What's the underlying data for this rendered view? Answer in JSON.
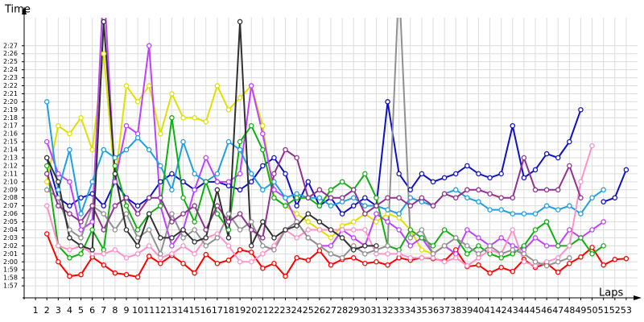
{
  "chart_data": {
    "type": "line",
    "y_label": "Time",
    "x_label": "Laps",
    "grid": true,
    "xlim": [
      0,
      54
    ],
    "ylim": [
      115.5,
      150.5
    ],
    "x": [
      1,
      2,
      3,
      4,
      5,
      6,
      7,
      8,
      9,
      10,
      11,
      12,
      13,
      14,
      15,
      16,
      17,
      18,
      19,
      20,
      21,
      22,
      23,
      24,
      25,
      26,
      27,
      28,
      29,
      30,
      31,
      32,
      33,
      34,
      35,
      36,
      37,
      38,
      39,
      40,
      41,
      42,
      43,
      44,
      45,
      46,
      47,
      48,
      49,
      50,
      51,
      52,
      53
    ],
    "yticks": [
      {
        "value": 117,
        "label": "1:57"
      },
      {
        "value": 118,
        "label": "1:58"
      },
      {
        "value": 119,
        "label": "1:59"
      },
      {
        "value": 120,
        "label": "2:00"
      },
      {
        "value": 121,
        "label": "2:01"
      },
      {
        "value": 122,
        "label": "2:02"
      },
      {
        "value": 123,
        "label": "2:03"
      },
      {
        "value": 124,
        "label": "2:04"
      },
      {
        "value": 125,
        "label": "2:05"
      },
      {
        "value": 126,
        "label": "2:06"
      },
      {
        "value": 127,
        "label": "2:07"
      },
      {
        "value": 128,
        "label": "2:08"
      },
      {
        "value": 129,
        "label": "2:09"
      },
      {
        "value": 130,
        "label": "2:10"
      },
      {
        "value": 131,
        "label": "2:11"
      },
      {
        "value": 132,
        "label": "2:12"
      },
      {
        "value": 133,
        "label": "2:13"
      },
      {
        "value": 134,
        "label": "2:14"
      },
      {
        "value": 135,
        "label": "2:15"
      },
      {
        "value": 136,
        "label": "2:16"
      },
      {
        "value": 137,
        "label": "2:17"
      },
      {
        "value": 138,
        "label": "2:18"
      },
      {
        "value": 139,
        "label": "2:19"
      },
      {
        "value": 140,
        "label": "2:20"
      },
      {
        "value": 141,
        "label": "2:21"
      },
      {
        "value": 142,
        "label": "2:22"
      },
      {
        "value": 143,
        "label": "2:23"
      },
      {
        "value": 144,
        "label": "2:24"
      },
      {
        "value": 145,
        "label": "2:25"
      },
      {
        "value": 146,
        "label": "2:26"
      },
      {
        "value": 147,
        "label": "2:27"
      }
    ],
    "series": [
      {
        "color": "#ff0000",
        "values": [
          null,
          123.5,
          120,
          118.2,
          118.4,
          120.6,
          119.6,
          118.6,
          118.4,
          118.1,
          120.7,
          119.8,
          120.8,
          119.8,
          118.6,
          120.9,
          119.8,
          120.2,
          121.5,
          121.2,
          119.2,
          119.8,
          118.2,
          120.5,
          120.2,
          121.4,
          119.6,
          120.3,
          120.5,
          119.8,
          120,
          119.6,
          120.5,
          120.2,
          120.5,
          120.4,
          120.1,
          121.5,
          119.4,
          119.6,
          118.6,
          119.3,
          118.8,
          120.3,
          119.3,
          119.8,
          118.7,
          119.8,
          120.6,
          121.8,
          119.6,
          120.3,
          120.4
        ]
      },
      {
        "color": "#1010c0",
        "values": [
          null,
          133,
          128,
          127,
          128,
          128.5,
          127,
          130,
          128,
          127,
          128,
          130,
          131,
          130,
          129,
          130,
          130,
          129.5,
          129,
          130,
          132,
          133,
          131,
          127,
          130,
          127,
          128,
          126,
          127,
          128,
          127,
          140,
          131,
          129,
          131,
          130,
          130.5,
          131,
          132,
          131,
          130.5,
          131,
          137,
          130.5,
          131.5,
          133.5,
          133,
          135,
          139,
          null,
          127.5,
          128,
          131.5
        ]
      },
      {
        "color": "#e0e000",
        "values": [
          null,
          130,
          137,
          136,
          138,
          134,
          146,
          130,
          142,
          140,
          142,
          136,
          141,
          138,
          138,
          137.5,
          142,
          139,
          140.5,
          142,
          137,
          128,
          127,
          126,
          125,
          124,
          123,
          124.5,
          125,
          126,
          125,
          126,
          125.5,
          124,
          121.5,
          121,
          122,
          null,
          null,
          null,
          null,
          null,
          null,
          null,
          null,
          null,
          null,
          null,
          null,
          null,
          null,
          null,
          null
        ]
      },
      {
        "color": "#c040ff",
        "values": [
          null,
          135,
          131,
          130,
          124,
          125,
          155,
          130,
          137,
          136,
          147,
          127,
          122,
          124,
          129,
          133,
          130,
          130,
          131,
          142,
          136,
          129,
          128,
          125,
          123,
          122,
          122,
          124,
          123,
          122,
          126,
          125,
          124,
          122,
          123,
          121,
          122,
          121,
          124,
          123,
          122,
          123,
          122,
          121.5,
          123,
          122,
          122,
          124,
          123,
          124,
          125,
          null,
          null
        ]
      },
      {
        "color": "#20a0e0",
        "values": [
          null,
          140,
          129,
          134,
          126,
          130,
          134,
          133,
          134,
          135.5,
          134,
          132,
          129,
          135,
          131,
          130,
          131,
          135,
          134,
          131,
          129,
          130,
          128,
          128.5,
          128,
          128,
          127,
          127.5,
          128,
          127,
          127,
          126.5,
          126,
          128,
          127.5,
          127,
          128.5,
          129,
          128,
          127.5,
          126.5,
          126.5,
          126,
          126,
          126,
          127,
          126.5,
          127,
          126,
          128,
          129,
          null,
          null
        ]
      },
      {
        "color": "#10b010",
        "values": [
          null,
          132,
          122,
          120.5,
          121,
          124,
          121.5,
          132,
          127,
          124,
          126,
          127,
          138,
          128,
          125,
          130,
          126,
          124,
          135,
          137,
          134,
          128,
          127,
          128,
          128,
          127,
          129,
          130,
          129,
          131,
          128,
          122,
          121.5,
          124,
          123,
          122,
          124,
          123,
          121,
          122,
          121,
          120.5,
          121,
          122,
          124,
          125,
          122,
          122,
          123,
          121,
          122,
          null,
          null
        ]
      },
      {
        "color": "#ff90c8",
        "values": [
          null,
          127,
          122,
          121.5,
          122,
          121,
          121,
          121.5,
          120.5,
          121,
          122,
          120.5,
          121,
          122,
          121,
          123,
          123.5,
          122,
          120,
          120,
          121,
          122,
          124,
          123,
          124,
          124,
          124,
          124,
          124,
          124,
          121,
          121,
          121,
          120.5,
          120.5,
          120.5,
          120,
          120.5,
          119.5,
          120.5,
          121.5,
          121,
          124,
          120,
          119.5,
          120,
          120.5,
          122,
          130,
          134.5,
          null,
          null,
          null
        ]
      },
      {
        "color": "#909090",
        "values": [
          null,
          129,
          128,
          124,
          123,
          127,
          126,
          124,
          126,
          123,
          124,
          121,
          126,
          123,
          124,
          122,
          123,
          126,
          124,
          125,
          122,
          121.5,
          124,
          125,
          123,
          122,
          121,
          120.5,
          122,
          121,
          121.5,
          122,
          155,
          123,
          124,
          121,
          122,
          123,
          122,
          121,
          122,
          121,
          121.5,
          121,
          120,
          119.5,
          120,
          120.5,
          null,
          null,
          null,
          null,
          null
        ]
      },
      {
        "color": "#903090",
        "values": [
          null,
          131,
          127,
          126,
          125,
          127,
          124,
          127,
          128,
          126,
          128,
          128,
          125,
          126,
          127,
          124,
          127,
          125,
          126,
          124,
          123,
          131,
          134,
          133,
          128,
          129,
          128,
          128,
          129,
          126,
          127,
          128,
          128,
          127,
          128,
          127,
          128.5,
          128,
          129,
          129,
          128.5,
          128,
          128,
          133,
          129,
          129,
          129,
          132,
          128,
          null,
          null,
          null,
          null
        ]
      },
      {
        "color": "#303030",
        "values": [
          null,
          133,
          130,
          123,
          122,
          121.5,
          150,
          131,
          124,
          122,
          126,
          123,
          123,
          124,
          122.5,
          123,
          129,
          123,
          150,
          122,
          125,
          123,
          124,
          124.5,
          126,
          125,
          124,
          123,
          121.5,
          122,
          122,
          null,
          null,
          null,
          null,
          null,
          null,
          null,
          null,
          null,
          null,
          null,
          null,
          null,
          null,
          null,
          null,
          null,
          null,
          null,
          null,
          null,
          null
        ]
      }
    ]
  }
}
